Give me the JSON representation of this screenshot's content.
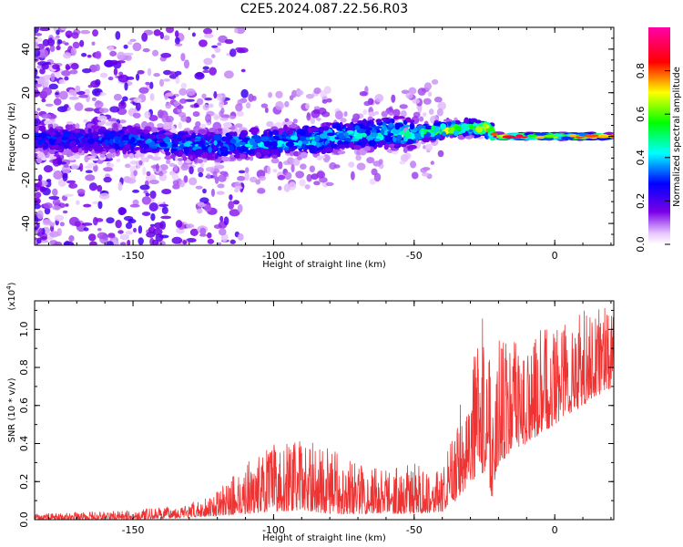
{
  "title": "C2E5.2024.087.22.56.R03",
  "chart_data": [
    {
      "type": "heatmap",
      "title": "C2E5.2024.087.22.56.R03",
      "xlabel": "Height of straight line (km)",
      "ylabel": "Frequency (Hz)",
      "xlim": [
        -185,
        21
      ],
      "ylim": [
        -50,
        50
      ],
      "xticks": [
        -150,
        -100,
        -50,
        0
      ],
      "yticks": [
        -40,
        -20,
        0,
        20,
        40
      ],
      "colorbar": {
        "label": "Normalized spectral amplitude",
        "range": [
          0,
          1
        ],
        "ticks": [
          "0.0",
          "0.2",
          "0.4",
          "0.6",
          "0.8"
        ],
        "colors": [
          "#ffffff",
          "#e9c8ff",
          "#7a00e6",
          "#0000ff",
          "#00ffff",
          "#00ff00",
          "#ffff00",
          "#ff0000",
          "#ff00aa"
        ]
      },
      "ridge": {
        "description": "dominant frequency band vs height",
        "x": [
          -185,
          -150,
          -125,
          -100,
          -75,
          -60,
          -50,
          -40,
          -30,
          -25,
          -20,
          -10,
          0,
          10,
          20
        ],
        "y": [
          -1,
          -2,
          -4,
          -3,
          0,
          2,
          1,
          3,
          4,
          4,
          0,
          0,
          0,
          0,
          0
        ],
        "amplitude": [
          0.3,
          0.35,
          0.4,
          0.45,
          0.45,
          0.5,
          0.55,
          0.7,
          0.65,
          0.8,
          0.95,
          0.95,
          0.95,
          0.95,
          0.9
        ]
      }
    },
    {
      "type": "line",
      "xlabel": "Height of straight line (km)",
      "ylabel": "SNR (10 * v/v)",
      "y_multiplier": "(x10^4)",
      "xlim": [
        -185,
        21
      ],
      "ylim": [
        0,
        1.15
      ],
      "xticks": [
        -150,
        -100,
        -50,
        0
      ],
      "yticks": [
        "0.0",
        "0.2",
        "0.4",
        "0.6",
        "0.8",
        "1.0"
      ],
      "series": [
        {
          "color": "#ee3333",
          "envelope_x": [
            -185,
            -170,
            -150,
            -130,
            -120,
            -110,
            -100,
            -90,
            -80,
            -70,
            -60,
            -50,
            -40,
            -35,
            -30,
            -25,
            -22,
            -20,
            -15,
            -10,
            -5,
            0,
            5,
            10,
            15,
            21
          ],
          "envelope_low": [
            0.0,
            0.0,
            0.0,
            0.01,
            0.02,
            0.03,
            0.04,
            0.05,
            0.03,
            0.03,
            0.03,
            0.03,
            0.04,
            0.1,
            0.2,
            0.25,
            0.1,
            0.3,
            0.35,
            0.4,
            0.45,
            0.5,
            0.55,
            0.6,
            0.65,
            0.7
          ],
          "envelope_high": [
            0.03,
            0.04,
            0.05,
            0.08,
            0.15,
            0.3,
            0.4,
            0.42,
            0.38,
            0.3,
            0.28,
            0.3,
            0.25,
            0.55,
            0.8,
            1.1,
            0.9,
            0.95,
            0.95,
            0.9,
            1.0,
            1.05,
            1.1,
            1.1,
            1.15,
            1.1
          ]
        }
      ]
    }
  ]
}
